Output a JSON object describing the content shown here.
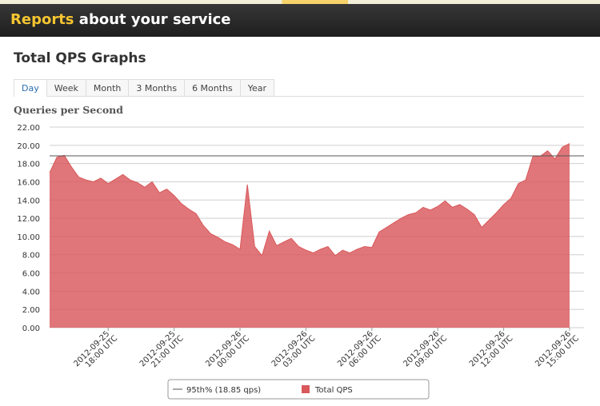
{
  "header": {
    "title_highlight": "Reports",
    "title_rest": "about your service"
  },
  "page_title": "Total QPS Graphs",
  "tabs": [
    "Day",
    "Week",
    "Month",
    "3 Months",
    "6 Months",
    "Year"
  ],
  "chart_data": {
    "type": "area",
    "title": "Queries per Second",
    "x": [
      "2012-09-25 15:20",
      "2012-09-25 15:40",
      "2012-09-25 16:00",
      "2012-09-25 16:20",
      "2012-09-25 16:40",
      "2012-09-25 17:00",
      "2012-09-25 17:20",
      "2012-09-25 17:40",
      "2012-09-25 18:00",
      "2012-09-25 18:20",
      "2012-09-25 18:40",
      "2012-09-25 19:00",
      "2012-09-25 19:20",
      "2012-09-25 19:40",
      "2012-09-25 20:00",
      "2012-09-25 20:20",
      "2012-09-25 20:40",
      "2012-09-25 21:00",
      "2012-09-25 21:20",
      "2012-09-25 21:40",
      "2012-09-25 22:00",
      "2012-09-25 22:20",
      "2012-09-25 22:40",
      "2012-09-25 23:00",
      "2012-09-25 23:20",
      "2012-09-25 23:40",
      "2012-09-26 00:00",
      "2012-09-26 00:20",
      "2012-09-26 00:40",
      "2012-09-26 01:00",
      "2012-09-26 01:20",
      "2012-09-26 01:40",
      "2012-09-26 02:00",
      "2012-09-26 02:20",
      "2012-09-26 02:40",
      "2012-09-26 03:00",
      "2012-09-26 03:20",
      "2012-09-26 03:40",
      "2012-09-26 04:00",
      "2012-09-26 04:20",
      "2012-09-26 04:40",
      "2012-09-26 05:00",
      "2012-09-26 05:20",
      "2012-09-26 05:40",
      "2012-09-26 06:00",
      "2012-09-26 06:20",
      "2012-09-26 06:40",
      "2012-09-26 07:00",
      "2012-09-26 07:20",
      "2012-09-26 07:40",
      "2012-09-26 08:00",
      "2012-09-26 08:20",
      "2012-09-26 08:40",
      "2012-09-26 09:00",
      "2012-09-26 09:20",
      "2012-09-26 09:40",
      "2012-09-26 10:00",
      "2012-09-26 10:20",
      "2012-09-26 10:40",
      "2012-09-26 11:00",
      "2012-09-26 11:20",
      "2012-09-26 11:40",
      "2012-09-26 12:00",
      "2012-09-26 12:20",
      "2012-09-26 12:40",
      "2012-09-26 13:00",
      "2012-09-26 13:20",
      "2012-09-26 13:40",
      "2012-09-26 14:00",
      "2012-09-26 14:20",
      "2012-09-26 14:40",
      "2012-09-26 15:00"
    ],
    "series": [
      {
        "name": "Total QPS",
        "color": "#d9585b",
        "values": [
          17.0,
          18.7,
          18.9,
          17.6,
          16.5,
          16.2,
          16.0,
          16.4,
          15.8,
          16.3,
          16.8,
          16.2,
          15.9,
          15.4,
          16.0,
          14.8,
          15.2,
          14.5,
          13.6,
          13.0,
          12.5,
          11.2,
          10.3,
          9.9,
          9.4,
          9.1,
          8.6,
          15.7,
          8.9,
          7.9,
          10.6,
          9.0,
          9.4,
          9.8,
          8.9,
          8.5,
          8.2,
          8.6,
          8.9,
          7.9,
          8.5,
          8.2,
          8.6,
          8.9,
          8.8,
          10.5,
          11.0,
          11.5,
          12.0,
          12.4,
          12.6,
          13.2,
          12.9,
          13.3,
          13.9,
          13.2,
          13.5,
          13.0,
          12.4,
          11.0,
          11.8,
          12.6,
          13.5,
          14.2,
          15.8,
          16.2,
          18.8,
          18.8,
          19.4,
          18.5,
          19.8,
          20.2
        ]
      }
    ],
    "reference_lines": [
      {
        "name": "95th% (18.85 qps)",
        "value": 18.85,
        "color": "#555555"
      }
    ],
    "xlim": [
      "2012-09-25 15:20",
      "2012-09-26 15:00"
    ],
    "xticks": [
      {
        "value": "2012-09-25 18:00",
        "label": [
          "2012-09-25",
          "18:00 UTC"
        ]
      },
      {
        "value": "2012-09-25 21:00",
        "label": [
          "2012-09-25",
          "21:00 UTC"
        ]
      },
      {
        "value": "2012-09-26 00:00",
        "label": [
          "2012-09-26",
          "00:00 UTC"
        ]
      },
      {
        "value": "2012-09-26 03:00",
        "label": [
          "2012-09-26",
          "03:00 UTC"
        ]
      },
      {
        "value": "2012-09-26 06:00",
        "label": [
          "2012-09-26",
          "06:00 UTC"
        ]
      },
      {
        "value": "2012-09-26 09:00",
        "label": [
          "2012-09-26",
          "09:00 UTC"
        ]
      },
      {
        "value": "2012-09-26 12:00",
        "label": [
          "2012-09-26",
          "12:00 UTC"
        ]
      },
      {
        "value": "2012-09-26 15:00",
        "label": [
          "2012-09-26",
          "15:00 UTC"
        ]
      }
    ],
    "ylim": [
      0,
      22
    ],
    "yticks": [
      {
        "value": 0,
        "label": "0.00"
      },
      {
        "value": 2,
        "label": "2.00"
      },
      {
        "value": 4,
        "label": "4.00"
      },
      {
        "value": 6,
        "label": "6.00"
      },
      {
        "value": 8,
        "label": "8.00"
      },
      {
        "value": 10,
        "label": "10.00"
      },
      {
        "value": 12,
        "label": "12.00"
      },
      {
        "value": 14,
        "label": "14.00"
      },
      {
        "value": 16,
        "label": "16.00"
      },
      {
        "value": 18,
        "label": "18.00"
      },
      {
        "value": 20,
        "label": "20.00"
      },
      {
        "value": 22,
        "label": "22.00"
      }
    ],
    "grid": true
  }
}
